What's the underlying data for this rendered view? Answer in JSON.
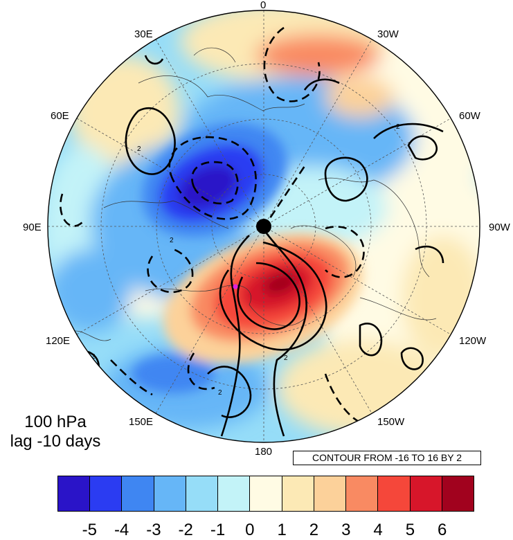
{
  "map": {
    "lon_labels": {
      "lon_0": "0",
      "lon_30w": "30W",
      "lon_60w": "60W",
      "lon_90w": "90W",
      "lon_120w": "120W",
      "lon_150w": "150W",
      "lon_180": "180",
      "lon_150e": "150E",
      "lon_120e": "120E",
      "lon_90e": "90E",
      "lon_60e": "60E",
      "lon_30e": "30E"
    },
    "contour_label": "2",
    "projection": "polar stereographic, North Pole",
    "colors": {
      "neg5": "#2a14c8",
      "neg4": "#2b3cf2",
      "neg3": "#3f86f2",
      "neg2": "#66b6f7",
      "neg1": "#96ddf8",
      "zero": "#c3f3f8",
      "pos0": "#fffbe4",
      "pos1": "#fce9b5",
      "pos2": "#fcd19a",
      "pos3": "#f98a62",
      "pos4": "#f5473a",
      "pos5": "#d7162a",
      "pos6": "#a1021e"
    }
  },
  "title": {
    "level": "100 hPa",
    "lag": "lag -10 days"
  },
  "contour_note": "CONTOUR FROM -16 TO 16 BY 2",
  "colorbar": {
    "colors": [
      "#2a14c8",
      "#2b3cf2",
      "#3f86f2",
      "#66b6f7",
      "#96ddf8",
      "#c3f3f8",
      "#fffbe4",
      "#fce9b5",
      "#fcd19a",
      "#f98a62",
      "#f5473a",
      "#d7162a",
      "#a1021e"
    ],
    "tick_labels": [
      "-5",
      "-4",
      "-3",
      "-2",
      "-1",
      "0",
      "1",
      "2",
      "3",
      "4",
      "5",
      "6"
    ]
  }
}
